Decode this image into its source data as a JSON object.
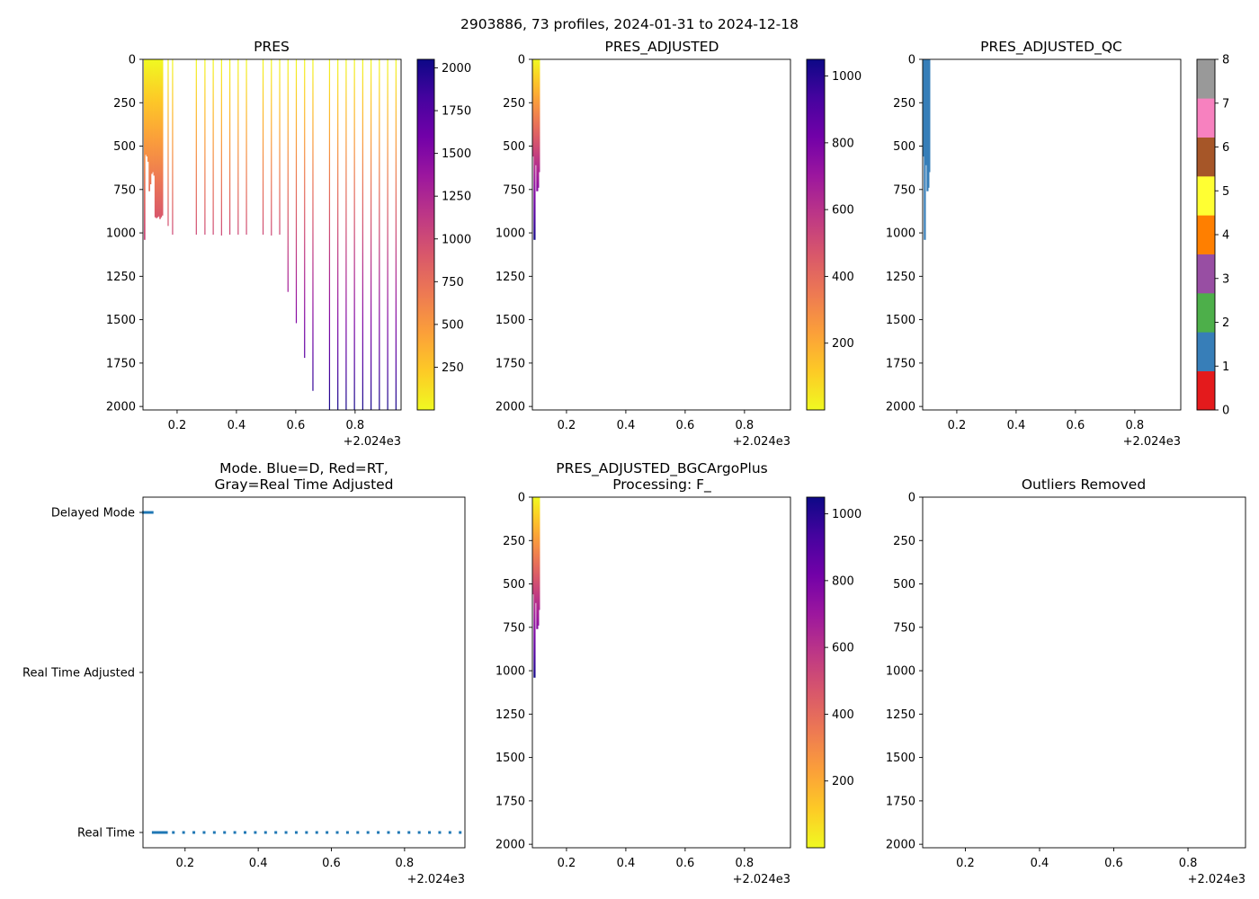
{
  "figure": {
    "suptitle": "2903886, 73 profiles, 2024-01-31 to 2024-12-18"
  },
  "colormaps": {
    "plasma_r": [
      "#f0f921",
      "#fdca26",
      "#fb9f3a",
      "#ed7953",
      "#d8576b",
      "#bd3786",
      "#9c179e",
      "#7201a8",
      "#46039f",
      "#0d0887"
    ]
  },
  "chart_data": [
    {
      "id": "pres",
      "type": "heatmap",
      "title": "PRES",
      "xlim": [
        0.085,
        0.955
      ],
      "ylim": [
        2020,
        0
      ],
      "x_ticks": [
        0.2,
        0.4,
        0.6,
        0.8
      ],
      "x_tick_labels": [
        "0.2",
        "0.4",
        "0.6",
        "0.8"
      ],
      "x_offset_label": "+2.024e3",
      "y_ticks": [
        0,
        250,
        500,
        750,
        1000,
        1250,
        1500,
        1750,
        2000
      ],
      "y_tick_labels": [
        "0",
        "250",
        "500",
        "750",
        "1000",
        "1250",
        "1500",
        "1750",
        "2000"
      ],
      "colorbar": {
        "min": 0,
        "max": 2050,
        "ticks": [
          250,
          500,
          750,
          1000,
          1250,
          1500,
          1750,
          2000
        ],
        "tick_labels": [
          "250",
          "500",
          "750",
          "1000",
          "1250",
          "1500",
          "1750",
          "2000"
        ],
        "cmap": "plasma_r"
      },
      "dense_profiles": [
        {
          "x": 0.088,
          "depth": 1040
        },
        {
          "x": 0.092,
          "depth": 550
        },
        {
          "x": 0.096,
          "depth": 560
        },
        {
          "x": 0.1,
          "depth": 590
        },
        {
          "x": 0.104,
          "depth": 760
        },
        {
          "x": 0.108,
          "depth": 720
        },
        {
          "x": 0.112,
          "depth": 660
        },
        {
          "x": 0.116,
          "depth": 650
        },
        {
          "x": 0.12,
          "depth": 670
        },
        {
          "x": 0.124,
          "depth": 910
        },
        {
          "x": 0.128,
          "depth": 915
        },
        {
          "x": 0.132,
          "depth": 910
        },
        {
          "x": 0.136,
          "depth": 905
        },
        {
          "x": 0.14,
          "depth": 920
        },
        {
          "x": 0.144,
          "depth": 910
        },
        {
          "x": 0.148,
          "depth": 900
        }
      ],
      "sparse_profiles": [
        {
          "x": 0.168,
          "depth": 960
        },
        {
          "x": 0.183,
          "depth": 1010
        },
        {
          "x": 0.263,
          "depth": 1010
        },
        {
          "x": 0.292,
          "depth": 1010
        },
        {
          "x": 0.32,
          "depth": 1010
        },
        {
          "x": 0.348,
          "depth": 1015
        },
        {
          "x": 0.376,
          "depth": 1010
        },
        {
          "x": 0.404,
          "depth": 1010
        },
        {
          "x": 0.432,
          "depth": 1010
        },
        {
          "x": 0.488,
          "depth": 1010
        },
        {
          "x": 0.516,
          "depth": 1015
        },
        {
          "x": 0.544,
          "depth": 1010
        },
        {
          "x": 0.572,
          "depth": 1340
        },
        {
          "x": 0.6,
          "depth": 1520
        },
        {
          "x": 0.628,
          "depth": 1720
        },
        {
          "x": 0.656,
          "depth": 1910
        },
        {
          "x": 0.712,
          "depth": 2020
        },
        {
          "x": 0.74,
          "depth": 2020
        },
        {
          "x": 0.768,
          "depth": 2020
        },
        {
          "x": 0.796,
          "depth": 2020
        },
        {
          "x": 0.824,
          "depth": 2020
        },
        {
          "x": 0.852,
          "depth": 2020
        },
        {
          "x": 0.88,
          "depth": 2020
        },
        {
          "x": 0.908,
          "depth": 2020
        },
        {
          "x": 0.936,
          "depth": 2020
        }
      ]
    },
    {
      "id": "pres_adj",
      "type": "heatmap",
      "title": "PRES_ADJUSTED",
      "xlim": [
        0.085,
        0.955
      ],
      "ylim": [
        2020,
        0
      ],
      "x_ticks": [
        0.2,
        0.4,
        0.6,
        0.8
      ],
      "x_tick_labels": [
        "0.2",
        "0.4",
        "0.6",
        "0.8"
      ],
      "x_offset_label": "+2.024e3",
      "y_ticks": [
        0,
        250,
        500,
        750,
        1000,
        1250,
        1500,
        1750,
        2000
      ],
      "y_tick_labels": [
        "0",
        "250",
        "500",
        "750",
        "1000",
        "1250",
        "1500",
        "1750",
        "2000"
      ],
      "colorbar": {
        "min": 0,
        "max": 1050,
        "ticks": [
          200,
          400,
          600,
          800,
          1000
        ],
        "tick_labels": [
          "200",
          "400",
          "600",
          "800",
          "1000"
        ],
        "cmap": "plasma_r"
      },
      "profiles": [
        {
          "x": 0.086,
          "depth": 560
        },
        {
          "x": 0.089,
          "depth": 1040
        },
        {
          "x": 0.092,
          "depth": 500
        },
        {
          "x": 0.095,
          "depth": 610
        },
        {
          "x": 0.098,
          "depth": 760
        },
        {
          "x": 0.101,
          "depth": 740
        },
        {
          "x": 0.104,
          "depth": 650
        }
      ]
    },
    {
      "id": "pres_adj_qc",
      "type": "heatmap",
      "title": "PRES_ADJUSTED_QC",
      "xlim": [
        0.085,
        0.955
      ],
      "ylim": [
        2020,
        0
      ],
      "x_ticks": [
        0.2,
        0.4,
        0.6,
        0.8
      ],
      "x_tick_labels": [
        "0.2",
        "0.4",
        "0.6",
        "0.8"
      ],
      "x_offset_label": "+2.024e3",
      "y_ticks": [
        0,
        250,
        500,
        750,
        1000,
        1250,
        1500,
        1750,
        2000
      ],
      "y_tick_labels": [
        "0",
        "250",
        "500",
        "750",
        "1000",
        "1250",
        "1500",
        "1750",
        "2000"
      ],
      "qc_color": "#377eb8",
      "colorbar": {
        "min": 0,
        "max": 8,
        "ticks": [
          0,
          1,
          2,
          3,
          4,
          5,
          6,
          7,
          8
        ],
        "tick_labels": [
          "0",
          "1",
          "2",
          "3",
          "4",
          "5",
          "6",
          "7",
          "8"
        ],
        "colors": [
          "#e41a1c",
          "#377eb8",
          "#4daf4a",
          "#984ea3",
          "#ff7f00",
          "#ffff33",
          "#a65628",
          "#f781bf",
          "#999999"
        ]
      },
      "profiles": [
        {
          "x": 0.086,
          "depth": 560
        },
        {
          "x": 0.089,
          "depth": 1040
        },
        {
          "x": 0.092,
          "depth": 500
        },
        {
          "x": 0.095,
          "depth": 610
        },
        {
          "x": 0.098,
          "depth": 760
        },
        {
          "x": 0.101,
          "depth": 740
        },
        {
          "x": 0.104,
          "depth": 650
        }
      ]
    },
    {
      "id": "mode",
      "type": "scatter",
      "title_line1": "Mode. Blue=D, Red=RT,",
      "title_line2": "Gray=Real Time Adjusted",
      "xlim": [
        0.085,
        0.965
      ],
      "x_ticks": [
        0.2,
        0.4,
        0.6,
        0.8
      ],
      "x_tick_labels": [
        "0.2",
        "0.4",
        "0.6",
        "0.8"
      ],
      "x_offset_label": "+2.024e3",
      "categories": [
        "Delayed Mode",
        "Real Time Adjusted",
        "Real Time"
      ],
      "point_color": "#1f77b4",
      "delayed_x": [
        0.086,
        0.089,
        0.092,
        0.095,
        0.098,
        0.101,
        0.104,
        0.107,
        0.11
      ],
      "realtime_x": [
        0.113,
        0.117,
        0.121,
        0.125,
        0.129,
        0.133,
        0.137,
        0.141,
        0.145,
        0.149,
        0.168,
        0.196,
        0.224,
        0.252,
        0.28,
        0.308,
        0.336,
        0.364,
        0.392,
        0.42,
        0.448,
        0.476,
        0.504,
        0.532,
        0.56,
        0.588,
        0.616,
        0.644,
        0.672,
        0.7,
        0.728,
        0.756,
        0.784,
        0.812,
        0.84,
        0.868,
        0.896,
        0.924,
        0.952
      ]
    },
    {
      "id": "bgc",
      "type": "heatmap",
      "title_line1": "PRES_ADJUSTED_BGCArgoPlus",
      "title_line2": "Processing: F_",
      "xlim": [
        0.085,
        0.955
      ],
      "ylim": [
        2020,
        0
      ],
      "x_ticks": [
        0.2,
        0.4,
        0.6,
        0.8
      ],
      "x_tick_labels": [
        "0.2",
        "0.4",
        "0.6",
        "0.8"
      ],
      "x_offset_label": "+2.024e3",
      "y_ticks": [
        0,
        250,
        500,
        750,
        1000,
        1250,
        1500,
        1750,
        2000
      ],
      "y_tick_labels": [
        "0",
        "250",
        "500",
        "750",
        "1000",
        "1250",
        "1500",
        "1750",
        "2000"
      ],
      "colorbar": {
        "min": 0,
        "max": 1050,
        "ticks": [
          200,
          400,
          600,
          800,
          1000
        ],
        "tick_labels": [
          "200",
          "400",
          "600",
          "800",
          "1000"
        ],
        "cmap": "plasma_r"
      },
      "profiles": [
        {
          "x": 0.086,
          "depth": 560
        },
        {
          "x": 0.089,
          "depth": 1040
        },
        {
          "x": 0.092,
          "depth": 500
        },
        {
          "x": 0.095,
          "depth": 610
        },
        {
          "x": 0.098,
          "depth": 760
        },
        {
          "x": 0.101,
          "depth": 740
        },
        {
          "x": 0.104,
          "depth": 650
        }
      ]
    },
    {
      "id": "outliers",
      "type": "heatmap",
      "title": "Outliers Removed",
      "xlim": [
        0.085,
        0.955
      ],
      "ylim": [
        2020,
        0
      ],
      "x_ticks": [
        0.2,
        0.4,
        0.6,
        0.8
      ],
      "x_tick_labels": [
        "0.2",
        "0.4",
        "0.6",
        "0.8"
      ],
      "x_offset_label": "+2.024e3",
      "y_ticks": [
        0,
        250,
        500,
        750,
        1000,
        1250,
        1500,
        1750,
        2000
      ],
      "y_tick_labels": [
        "0",
        "250",
        "500",
        "750",
        "1000",
        "1250",
        "1500",
        "1750",
        "2000"
      ],
      "profiles": []
    }
  ]
}
